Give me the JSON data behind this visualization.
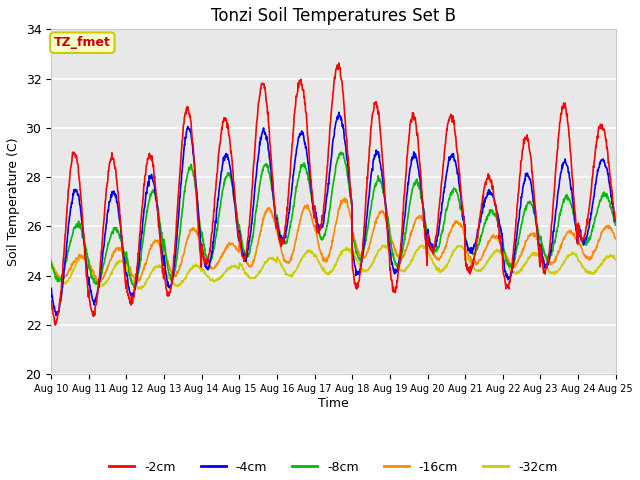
{
  "title": "Tonzi Soil Temperatures Set B",
  "xlabel": "Time",
  "ylabel": "Soil Temperature (C)",
  "annotation_text": "TZ_fmet",
  "annotation_color": "#cc0000",
  "annotation_bg": "#ffffcc",
  "annotation_border": "#cccc00",
  "ylim": [
    20,
    34
  ],
  "xlim": [
    0,
    15
  ],
  "bg_color": "#e8e8e8",
  "grid_color": "#ffffff",
  "series_colors": [
    "#ff0000",
    "#0000ff",
    "#00bb00",
    "#ff8800",
    "#cccc00"
  ],
  "series_labels": [
    "-2cm",
    "-4cm",
    "-8cm",
    "-16cm",
    "-32cm"
  ],
  "xtick_labels": [
    "Aug 10",
    "Aug 11",
    "Aug 12",
    "Aug 13",
    "Aug 14",
    "Aug 15",
    "Aug 16",
    "Aug 17",
    "Aug 18",
    "Aug 19",
    "Aug 20",
    "Aug 21",
    "Aug 22",
    "Aug 23",
    "Aug 24",
    "Aug 25"
  ],
  "xtick_positions": [
    0,
    1,
    2,
    3,
    4,
    5,
    6,
    7,
    8,
    9,
    10,
    11,
    12,
    13,
    14,
    15
  ],
  "ytick_positions": [
    20,
    22,
    24,
    26,
    28,
    30,
    32,
    34
  ]
}
